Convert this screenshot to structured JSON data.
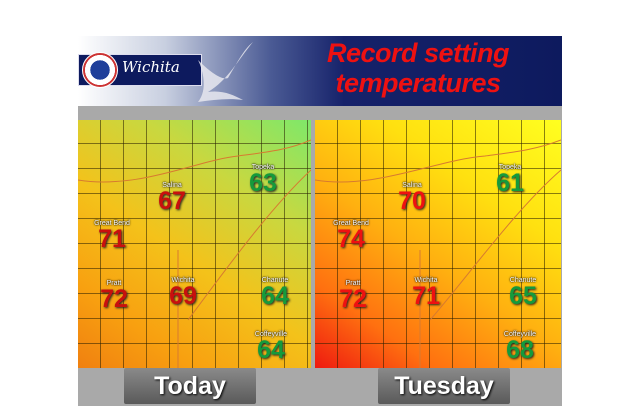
{
  "header": {
    "office": "Wichita",
    "title_line1": "Record setting",
    "title_line2": "temperatures",
    "logo": "National Weather Service seal"
  },
  "colors": {
    "header_bg": "#0d1a5e",
    "title": "#ee1111",
    "hot": "#c8100e",
    "cool": "#159a3c"
  },
  "maps": [
    {
      "label": "Today",
      "cities": [
        {
          "name": "Topeka",
          "temp": "63"
        },
        {
          "name": "Salina",
          "temp": "67"
        },
        {
          "name": "Great Bend",
          "temp": "71"
        },
        {
          "name": "Pratt",
          "temp": "72"
        },
        {
          "name": "Wichita",
          "temp": "69"
        },
        {
          "name": "Chanute",
          "temp": "64"
        },
        {
          "name": "Coffeyville",
          "temp": "64"
        }
      ]
    },
    {
      "label": "Tuesday",
      "cities": [
        {
          "name": "Topeka",
          "temp": "61"
        },
        {
          "name": "Salina",
          "temp": "70"
        },
        {
          "name": "Great Bend",
          "temp": "74"
        },
        {
          "name": "Pratt",
          "temp": "72"
        },
        {
          "name": "Wichita",
          "temp": "71"
        },
        {
          "name": "Chanute",
          "temp": "65"
        },
        {
          "name": "Coffeyville",
          "temp": "68"
        }
      ]
    }
  ]
}
